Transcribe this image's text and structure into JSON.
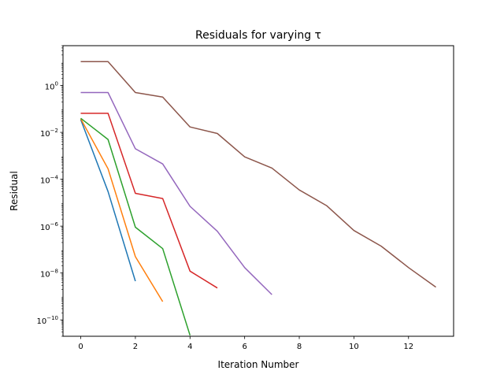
{
  "chart_data": {
    "type": "line",
    "title": "Residuals for varying τ",
    "xlabel": "Iteration Number",
    "ylabel": "Residual",
    "yscale": "log",
    "xlim": [
      -0.65,
      13.65
    ],
    "ylim": [
      2e-11,
      50
    ],
    "grid": false,
    "x_ticks": [
      {
        "value": 0,
        "label": "0"
      },
      {
        "value": 2,
        "label": "2"
      },
      {
        "value": 4,
        "label": "4"
      },
      {
        "value": 6,
        "label": "6"
      },
      {
        "value": 8,
        "label": "8"
      },
      {
        "value": 10,
        "label": "10"
      },
      {
        "value": 12,
        "label": "12"
      }
    ],
    "y_ticks": [
      {
        "value": 1e-10,
        "base": "10",
        "exp": "−10"
      },
      {
        "value": 1e-08,
        "base": "10",
        "exp": "−8"
      },
      {
        "value": 1e-06,
        "base": "10",
        "exp": "−6"
      },
      {
        "value": 0.0001,
        "base": "10",
        "exp": "−4"
      },
      {
        "value": 0.01,
        "base": "10",
        "exp": "−2"
      },
      {
        "value": 1,
        "base": "10",
        "exp": "0"
      }
    ],
    "series": [
      {
        "color": "#1f77b4",
        "x": [
          0,
          1,
          2
        ],
        "y": [
          0.035,
          3e-05,
          4.5e-09
        ]
      },
      {
        "color": "#ff7f0e",
        "x": [
          0,
          1,
          2,
          3
        ],
        "y": [
          0.038,
          0.00028,
          5e-08,
          6e-10
        ]
      },
      {
        "color": "#2ca02c",
        "x": [
          0,
          1,
          2,
          3,
          4
        ],
        "y": [
          0.04,
          0.005,
          9e-07,
          1.1e-07,
          2.2e-11
        ]
      },
      {
        "color": "#d62728",
        "x": [
          0,
          1,
          2,
          3,
          4,
          5
        ],
        "y": [
          0.065,
          0.065,
          2.5e-05,
          1.5e-05,
          1.2e-08,
          2.3e-09
        ]
      },
      {
        "color": "#9467bd",
        "x": [
          0,
          1,
          2,
          3,
          4,
          5,
          6,
          7
        ],
        "y": [
          0.5,
          0.5,
          0.002,
          0.00045,
          7e-06,
          6e-07,
          1.7e-08,
          1.2e-09
        ]
      },
      {
        "color": "#8c564b",
        "x": [
          0,
          1,
          2,
          3,
          4,
          5,
          6,
          7,
          8,
          9,
          10,
          11,
          12,
          13
        ],
        "y": [
          10.5,
          10.5,
          0.5,
          0.32,
          0.017,
          0.009,
          0.0009,
          0.0003,
          3.5e-05,
          7.5e-06,
          6.5e-07,
          1.4e-07,
          1.7e-08,
          2.5e-09
        ]
      }
    ]
  }
}
